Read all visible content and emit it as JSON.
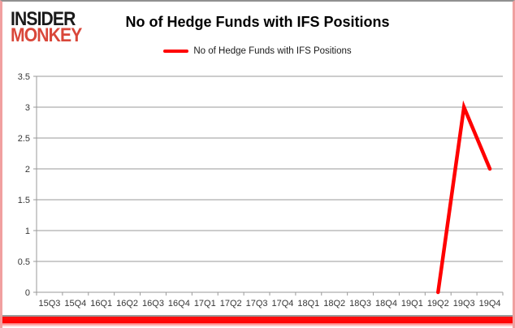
{
  "logo": {
    "line1": "INSIDER",
    "line2": "MONKEY"
  },
  "chart_data": {
    "type": "line",
    "title": "No of Hedge Funds with IFS Positions",
    "legend_entries": [
      "No of Hedge Funds with IFS Positions"
    ],
    "legend_position": "top-center",
    "grid": true,
    "categories": [
      "15Q3",
      "15Q4",
      "16Q1",
      "16Q2",
      "16Q3",
      "16Q4",
      "17Q1",
      "17Q2",
      "17Q3",
      "17Q4",
      "18Q1",
      "18Q2",
      "18Q3",
      "18Q4",
      "19Q1",
      "19Q2",
      "19Q3",
      "19Q4"
    ],
    "series": [
      {
        "name": "No of Hedge Funds with IFS Positions",
        "color": "#ff0000",
        "values": [
          null,
          null,
          null,
          null,
          null,
          null,
          null,
          null,
          null,
          null,
          null,
          null,
          null,
          null,
          null,
          0,
          3,
          2
        ]
      }
    ],
    "ylim": [
      0,
      3.5
    ],
    "yticks": [
      "0",
      "0.5",
      "1",
      "1.5",
      "2",
      "2.5",
      "3",
      "3.5"
    ],
    "xlabel": "",
    "ylabel": ""
  },
  "colors": {
    "accent_red": "#ff0000",
    "logo_red": "#d9473a",
    "grid_gray": "#9a9a9a"
  }
}
